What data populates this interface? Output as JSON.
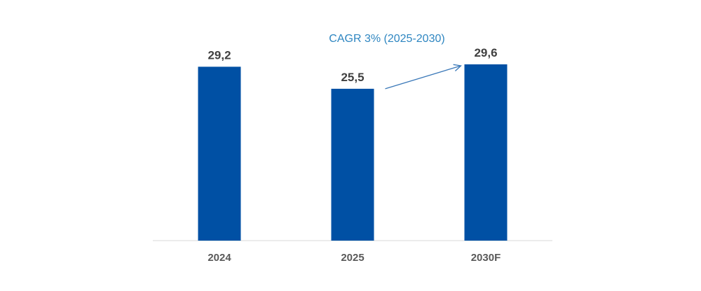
{
  "chart_data": {
    "type": "bar",
    "categories": [
      "2024",
      "2025",
      "2030F"
    ],
    "values": [
      29.2,
      25.5,
      29.6
    ],
    "value_labels": [
      "29,2",
      "25,5",
      "29,6"
    ],
    "title": "",
    "xlabel": "",
    "ylabel": "",
    "ylim": [
      0,
      29.6
    ],
    "grid": false,
    "legend": "none",
    "annotation": {
      "text": "CAGR  3% (2025-2030)",
      "from_category": "2025",
      "to_category": "2030F"
    }
  },
  "colors": {
    "bar": "#0050A4",
    "axis": "#D9D9D9",
    "annotation": "#2E86C1",
    "arrow": "#3A78B8"
  }
}
